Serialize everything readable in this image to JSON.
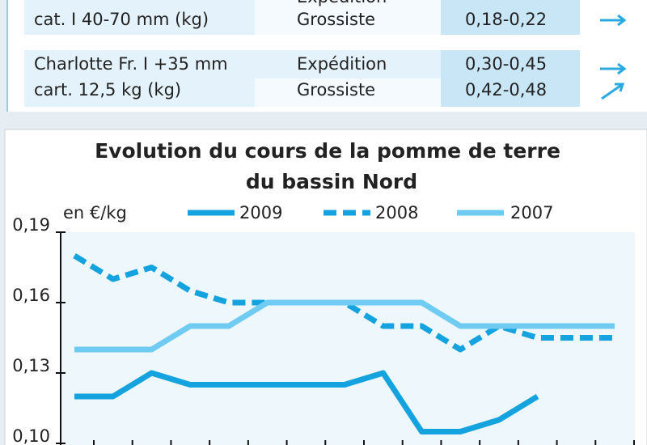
{
  "table": {
    "rows": [
      {
        "name": [
          "cat. I 40-70 mm (kg)"
        ],
        "markets": [
          "Expédition",
          "Grossiste"
        ],
        "prices": [
          "0,18-0,22"
        ]
      },
      {
        "name": [
          "Charlotte Fr. I +35 mm",
          "cart. 12,5 kg (kg)"
        ],
        "markets": [
          "Expédition",
          "Grossiste"
        ],
        "prices": [
          "0,30-0,45",
          "0,42-0,48"
        ]
      }
    ]
  },
  "chart_data": {
    "type": "line",
    "title": [
      "Evolution du cours de la pomme de terre",
      "du bassin Nord"
    ],
    "y_label": "en €/kg",
    "categories": [
      null,
      null,
      null,
      null,
      null,
      null,
      null,
      null,
      null,
      null,
      null,
      null,
      null,
      null,
      null
    ],
    "series": [
      {
        "name": "2009",
        "color": "#14a3df",
        "style": "solid",
        "values": [
          0.12,
          0.12,
          0.13,
          0.125,
          0.125,
          0.125,
          0.125,
          0.125,
          0.13,
          0.105,
          0.105,
          0.11,
          0.12,
          null,
          null
        ]
      },
      {
        "name": "2008",
        "color": "#14a3df",
        "style": "dashed",
        "values": [
          0.18,
          0.17,
          0.175,
          0.165,
          0.16,
          0.16,
          0.16,
          0.16,
          0.15,
          0.15,
          0.14,
          0.15,
          0.145,
          0.145,
          0.145
        ]
      },
      {
        "name": "2007",
        "color": "#6fcbf1",
        "style": "solid",
        "values": [
          0.14,
          0.14,
          0.14,
          0.15,
          0.15,
          0.16,
          0.16,
          0.16,
          0.16,
          0.16,
          0.15,
          0.15,
          0.15,
          0.15,
          0.15
        ]
      }
    ],
    "ylim": [
      0.1,
      0.19
    ],
    "yticks": [
      {
        "value": 0.1,
        "label": "0,10"
      },
      {
        "value": 0.13,
        "label": "0,13"
      },
      {
        "value": 0.16,
        "label": "0,16"
      },
      {
        "value": 0.19,
        "label": "0,19"
      }
    ],
    "grid": false
  }
}
